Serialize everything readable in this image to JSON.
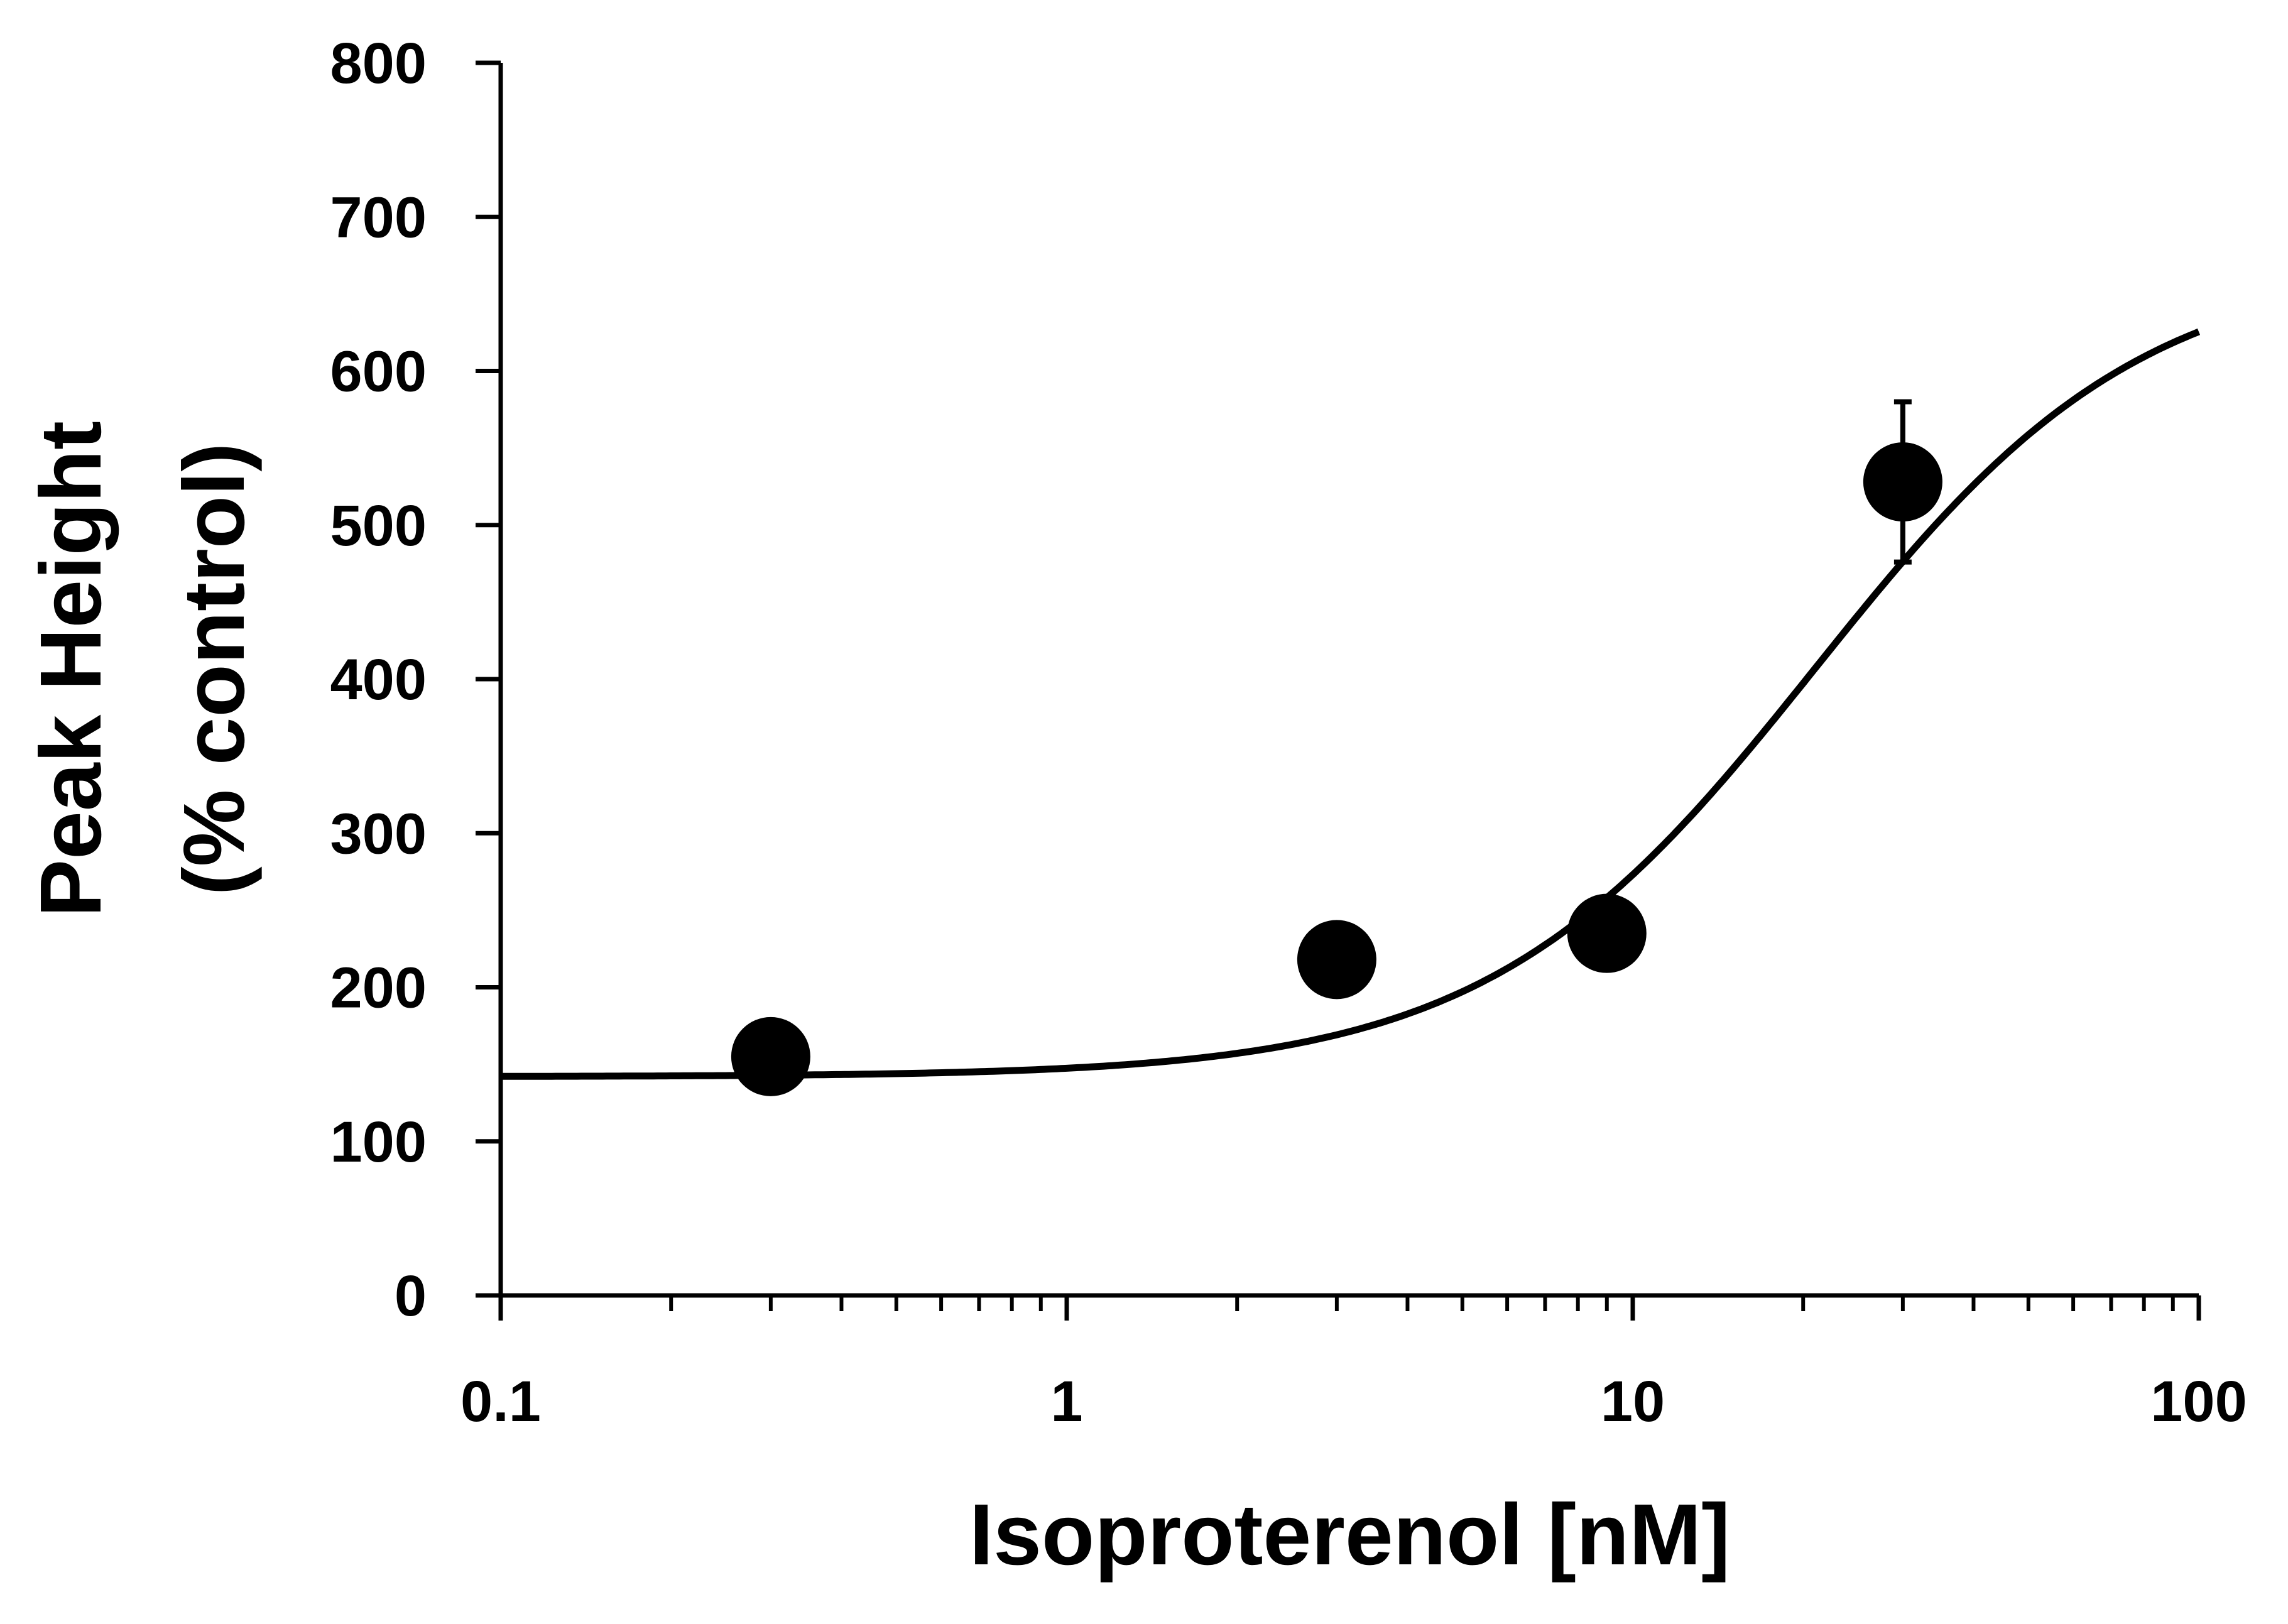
{
  "chart_data": {
    "type": "scatter",
    "title": "",
    "xlabel": "Isoproterenol [nM]",
    "ylabel_lines": [
      "Peak Height",
      "(% control)"
    ],
    "x_scale": "log",
    "xlim": [
      0.1,
      100
    ],
    "ylim": [
      0,
      800
    ],
    "x_ticks": [
      0.1,
      1,
      10,
      100
    ],
    "x_tick_labels": [
      "0.1",
      "1",
      "10",
      "100"
    ],
    "y_ticks": [
      0,
      100,
      200,
      300,
      400,
      500,
      600,
      700,
      800
    ],
    "y_tick_labels": [
      "0",
      "100",
      "200",
      "300",
      "400",
      "500",
      "600",
      "700",
      "800"
    ],
    "grid": false,
    "legend": "none",
    "series": [
      {
        "name": "data",
        "kind": "points",
        "x": [
          0.3,
          3,
          9,
          30
        ],
        "y": [
          155,
          218,
          235,
          528
        ],
        "error": [
          0,
          0,
          0,
          52
        ],
        "color": "#000000"
      },
      {
        "name": "fit",
        "kind": "curve",
        "model": "sigmoid",
        "bottom": 142,
        "top": 672,
        "ec50": 21,
        "hill": 1.5,
        "color": "#000000"
      }
    ]
  }
}
